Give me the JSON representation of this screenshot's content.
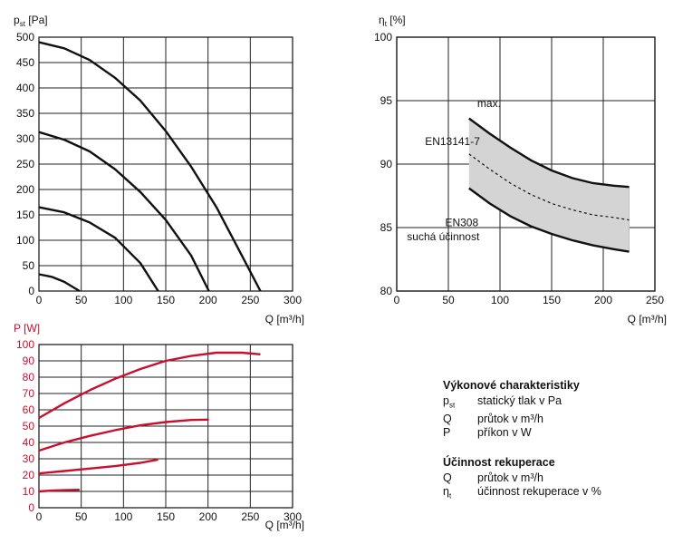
{
  "chart_data": [
    {
      "id": "pressure",
      "type": "line",
      "title": "",
      "ylabel_main": "p",
      "ylabel_sub": "st",
      "ylabel_unit": "[Pa]",
      "xlabel_main": "Q",
      "xlabel_unit": "[m³/h]",
      "xlim": [
        0,
        300
      ],
      "ylim": [
        0,
        500
      ],
      "xticks": [
        0,
        50,
        100,
        150,
        200,
        250,
        300
      ],
      "yticks": [
        0,
        50,
        100,
        150,
        200,
        250,
        300,
        350,
        400,
        450,
        500
      ],
      "color": "#111111",
      "series": [
        {
          "x": [
            0,
            30,
            60,
            90,
            120,
            150,
            180,
            210,
            240,
            262
          ],
          "y": [
            490,
            478,
            455,
            420,
            375,
            315,
            245,
            165,
            70,
            0
          ]
        },
        {
          "x": [
            0,
            30,
            60,
            90,
            120,
            150,
            180,
            201
          ],
          "y": [
            313,
            298,
            275,
            240,
            195,
            140,
            70,
            0
          ]
        },
        {
          "x": [
            0,
            30,
            60,
            90,
            120,
            141
          ],
          "y": [
            165,
            155,
            135,
            105,
            55,
            0
          ]
        },
        {
          "x": [
            0,
            15,
            30,
            48
          ],
          "y": [
            33,
            28,
            18,
            0
          ]
        }
      ]
    },
    {
      "id": "efficiency",
      "type": "area",
      "title": "",
      "ylabel_main": "η",
      "ylabel_sub": "t",
      "ylabel_unit": "[%]",
      "xlabel_main": "Q",
      "xlabel_unit": "[m³/h]",
      "xlim": [
        0,
        250
      ],
      "ylim": [
        80,
        100
      ],
      "xticks": [
        0,
        50,
        100,
        150,
        200,
        250
      ],
      "yticks": [
        80,
        85,
        90,
        95,
        100
      ],
      "band_color": "#d4d4d4",
      "upper": {
        "x": [
          70,
          90,
          110,
          130,
          150,
          170,
          190,
          210,
          225
        ],
        "y": [
          93.6,
          92.4,
          91.3,
          90.3,
          89.5,
          88.9,
          88.5,
          88.3,
          88.2
        ]
      },
      "mid": {
        "x": [
          70,
          90,
          110,
          130,
          150,
          170,
          190,
          210,
          225
        ],
        "y": [
          90.8,
          89.6,
          88.5,
          87.6,
          86.9,
          86.4,
          86.0,
          85.8,
          85.6
        ]
      },
      "lower": {
        "x": [
          70,
          90,
          110,
          130,
          150,
          170,
          190,
          210,
          225
        ],
        "y": [
          88.1,
          86.9,
          85.9,
          85.1,
          84.5,
          84.0,
          83.6,
          83.3,
          83.1
        ]
      },
      "annotations": {
        "max": "max.",
        "en13141": "EN13141-7",
        "en308": "EN308",
        "dry": "suchá účinnost"
      }
    },
    {
      "id": "power",
      "type": "line",
      "title": "",
      "ylabel_main": "P",
      "ylabel_unit": "[W]",
      "xlabel_main": "Q",
      "xlabel_unit": "[m³/h]",
      "xlim": [
        0,
        300
      ],
      "ylim": [
        0,
        100
      ],
      "xticks": [
        0,
        50,
        100,
        150,
        200,
        250,
        300
      ],
      "yticks": [
        0,
        10,
        20,
        30,
        40,
        50,
        60,
        70,
        80,
        90,
        100
      ],
      "color": "#c8102e",
      "series": [
        {
          "x": [
            0,
            30,
            60,
            90,
            120,
            150,
            180,
            210,
            240,
            262
          ],
          "y": [
            55,
            64,
            72,
            79,
            85,
            90,
            93,
            95,
            95,
            94
          ]
        },
        {
          "x": [
            0,
            30,
            60,
            90,
            120,
            150,
            180,
            201
          ],
          "y": [
            35,
            40,
            44,
            47.5,
            50.5,
            52.5,
            53.8,
            54
          ]
        },
        {
          "x": [
            0,
            30,
            60,
            90,
            120,
            141
          ],
          "y": [
            21,
            22.5,
            24,
            25.5,
            27.5,
            29.5
          ]
        },
        {
          "x": [
            0,
            15,
            30,
            48
          ],
          "y": [
            10,
            10.5,
            10.8,
            11
          ]
        }
      ]
    }
  ],
  "legend": {
    "sec1_title": "Výkonové charakteristiky",
    "sec1_rows": [
      {
        "sym": "p",
        "sub": "st",
        "desc": "statický tlak v Pa"
      },
      {
        "sym": "Q",
        "sub": "",
        "desc": "průtok v m³/h"
      },
      {
        "sym": "P",
        "sub": "",
        "desc": "příkon v W"
      }
    ],
    "sec2_title": "Účinnost rekuperace",
    "sec2_rows": [
      {
        "sym": "Q",
        "sub": "",
        "desc": "průtok v m³/h"
      },
      {
        "sym": "η",
        "sub": "t",
        "desc": "účinnost rekuperace v %"
      }
    ]
  }
}
